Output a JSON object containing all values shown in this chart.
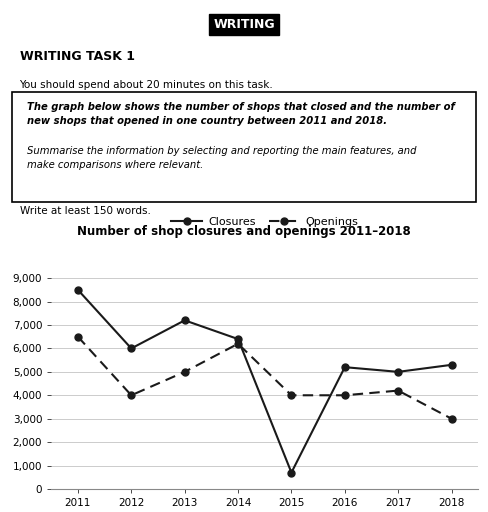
{
  "years": [
    2011,
    2012,
    2013,
    2014,
    2015,
    2016,
    2017,
    2018
  ],
  "closures": [
    8500,
    6000,
    7200,
    6400,
    700,
    5200,
    5000,
    5300
  ],
  "openings": [
    6500,
    4000,
    5000,
    6200,
    4000,
    4000,
    4200,
    3000
  ],
  "title": "Number of shop closures and openings 2011–2018",
  "legend_closures": "Closures",
  "legend_openings": "Openings",
  "yticks": [
    0,
    1000,
    2000,
    3000,
    4000,
    5000,
    6000,
    7000,
    8000,
    9000
  ],
  "ylim": [
    0,
    9400
  ],
  "xlim": [
    2010.5,
    2018.5
  ],
  "header_text": "WRITING",
  "task_title": "WRITING TASK 1",
  "task_subtitle": "You should spend about 20 minutes on this task.",
  "box_text_bold": "The graph below shows the number of shops that closed and the number of\nnew shops that opened in one country between 2011 and 2018.",
  "box_text_italic": "Summarise the information by selecting and reporting the main features, and\nmake comparisons where relevant.",
  "footer_text": "Write at least 150 words.",
  "bg_color": "#ffffff",
  "line_color": "#1a1a1a",
  "grid_color": "#cccccc"
}
